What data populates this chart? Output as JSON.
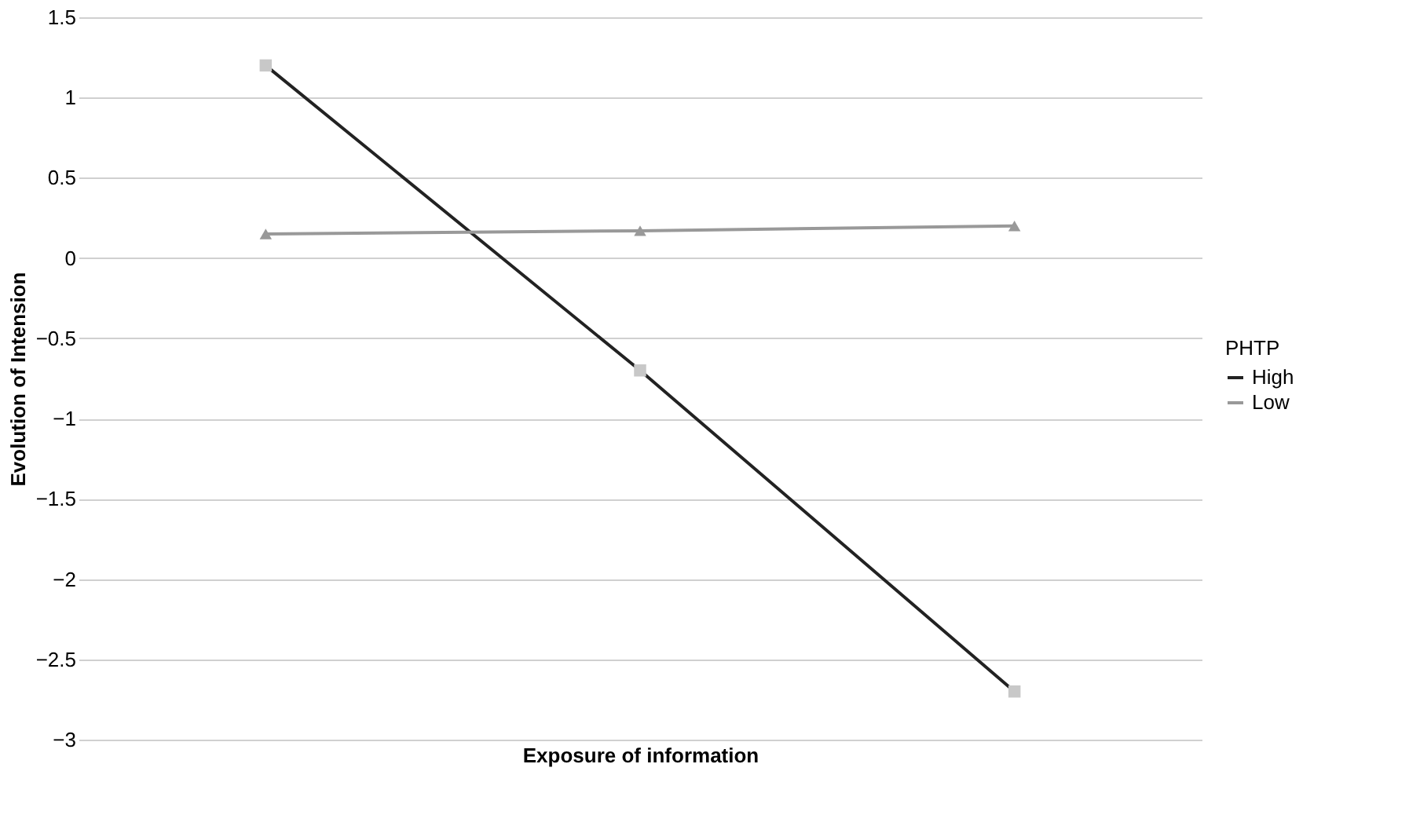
{
  "chart_data": {
    "type": "line",
    "xlabel": "Exposure of information",
    "ylabel": "Evolution of Intension",
    "legend_title": "PHTP",
    "categories": [
      null,
      null,
      null
    ],
    "series": [
      {
        "name": "High",
        "color": "#222222",
        "values": [
          1.2,
          -0.7,
          -2.7
        ],
        "marker": "square"
      },
      {
        "name": "Low",
        "color": "#999999",
        "values": [
          0.15,
          0.17,
          0.2
        ],
        "marker": "triangle"
      }
    ],
    "ylim": [
      -3,
      1.5
    ],
    "yticks": [
      -3,
      -2.5,
      -2,
      -1.5,
      -1,
      -0.5,
      0,
      0.5,
      1,
      1.5
    ],
    "grid": "y",
    "legend": "right",
    "tick_labels": "y"
  }
}
